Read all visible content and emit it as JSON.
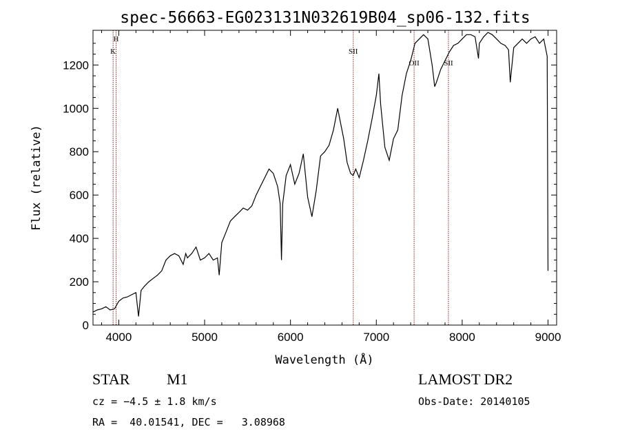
{
  "chart_data": {
    "type": "line",
    "title": "spec-56663-EG023131N032619B04_sp06-132.fits",
    "xlabel": "Wavelength (Å)",
    "ylabel": "Flux (relative)",
    "xlim": [
      3700,
      9100
    ],
    "ylim": [
      0,
      1360
    ],
    "x_ticks": [
      4000,
      5000,
      6000,
      7000,
      8000,
      9000
    ],
    "y_ticks": [
      0,
      200,
      400,
      600,
      800,
      1000,
      1200
    ],
    "grid": false,
    "line_color": "#000000",
    "marker_color": "#8b1a1a",
    "spectral_lines": [
      {
        "label": "K",
        "x": 3934
      },
      {
        "label": "H",
        "x": 3969
      },
      {
        "label": "SII",
        "x": 6731
      },
      {
        "label": "OII",
        "x": 7440
      },
      {
        "label": "SII",
        "x": 7840
      }
    ],
    "series": [
      {
        "x": [
          3700,
          3750,
          3800,
          3850,
          3900,
          3950,
          4000,
          4050,
          4100,
          4150,
          4200,
          4230,
          4260,
          4300,
          4350,
          4400,
          4450,
          4500,
          4550,
          4600,
          4650,
          4700,
          4750,
          4780,
          4800,
          4850,
          4900,
          4950,
          5000,
          5050,
          5100,
          5150,
          5170,
          5200,
          5250,
          5300,
          5350,
          5400,
          5450,
          5500,
          5550,
          5600,
          5650,
          5700,
          5750,
          5800,
          5850,
          5880,
          5895,
          5910,
          5950,
          6000,
          6050,
          6100,
          6150,
          6200,
          6250,
          6300,
          6350,
          6400,
          6450,
          6500,
          6550,
          6580,
          6620,
          6660,
          6700,
          6730,
          6760,
          6800,
          6850,
          6900,
          6950,
          7000,
          7030,
          7050,
          7100,
          7150,
          7200,
          7250,
          7300,
          7350,
          7400,
          7450,
          7500,
          7550,
          7600,
          7650,
          7680,
          7700,
          7750,
          7800,
          7850,
          7900,
          7950,
          8000,
          8050,
          8100,
          8150,
          8190,
          8200,
          8250,
          8300,
          8350,
          8400,
          8450,
          8500,
          8540,
          8560,
          8600,
          8650,
          8700,
          8750,
          8800,
          8850,
          8900,
          8950,
          8990,
          9000
        ],
        "y": [
          60,
          70,
          75,
          85,
          70,
          75,
          110,
          125,
          130,
          140,
          150,
          40,
          160,
          180,
          200,
          215,
          230,
          250,
          300,
          320,
          330,
          320,
          280,
          330,
          310,
          330,
          360,
          300,
          310,
          330,
          300,
          310,
          230,
          380,
          430,
          480,
          500,
          520,
          540,
          530,
          550,
          600,
          640,
          680,
          720,
          700,
          640,
          560,
          300,
          560,
          690,
          740,
          650,
          700,
          790,
          590,
          500,
          620,
          780,
          800,
          830,
          900,
          1000,
          940,
          860,
          750,
          700,
          690,
          720,
          680,
          760,
          850,
          950,
          1060,
          1160,
          1020,
          820,
          760,
          860,
          900,
          1060,
          1160,
          1220,
          1300,
          1320,
          1340,
          1320,
          1200,
          1100,
          1120,
          1180,
          1220,
          1260,
          1290,
          1300,
          1320,
          1340,
          1340,
          1330,
          1230,
          1300,
          1330,
          1350,
          1340,
          1320,
          1300,
          1290,
          1270,
          1120,
          1280,
          1300,
          1320,
          1300,
          1320,
          1330,
          1300,
          1320,
          1240,
          250
        ]
      }
    ]
  },
  "info": {
    "object_class": "STAR",
    "subclass": "M1",
    "survey": "LAMOST DR2",
    "cz": "cz = −4.5 ± 1.8 km/s",
    "obs_date": "Obs-Date: 20140105",
    "coords": "RA =  40.01541, DEC =   3.08968"
  }
}
